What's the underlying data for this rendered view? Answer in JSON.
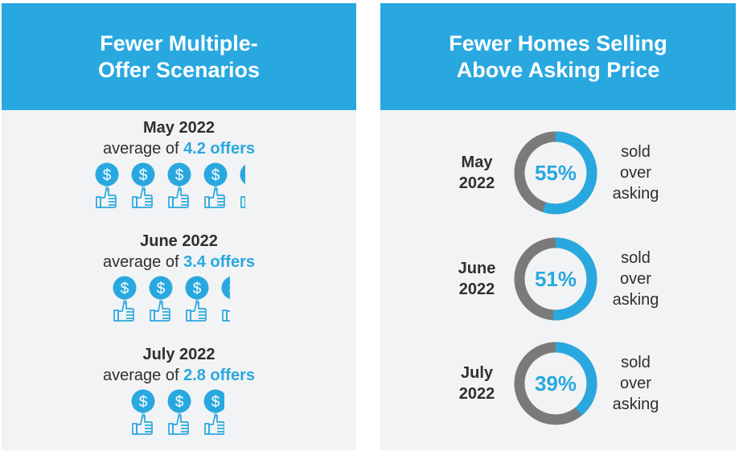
{
  "left_panel": {
    "title_lines": [
      "Fewer Multiple-",
      "Offer Scenarios"
    ],
    "periods": [
      {
        "label": "May 2022",
        "avg_prefix": "average of ",
        "avg_value": "4.2 offers",
        "offers": 4.2
      },
      {
        "label": "June 2022",
        "avg_prefix": "average of ",
        "avg_value": "3.4 offers",
        "offers": 3.4
      },
      {
        "label": "July 2022",
        "avg_prefix": "average of ",
        "avg_value": "2.8 offers",
        "offers": 2.8
      }
    ]
  },
  "right_panel": {
    "title_lines": [
      "Fewer Homes Selling",
      "Above Asking Price"
    ],
    "stats": [
      {
        "label_lines": [
          "May",
          "2022"
        ],
        "percent_label": "55%",
        "percent": 55,
        "caption_lines": [
          "sold",
          "over",
          "asking"
        ]
      },
      {
        "label_lines": [
          "June",
          "2022"
        ],
        "percent_label": "51%",
        "percent": 51,
        "caption_lines": [
          "sold",
          "over",
          "asking"
        ]
      },
      {
        "label_lines": [
          "July",
          "2022"
        ],
        "percent_label": "39%",
        "percent": 39,
        "caption_lines": [
          "sold",
          "over",
          "asking"
        ]
      }
    ]
  },
  "colors": {
    "accent": "#29a8e0",
    "ring_track": "#7a7a7a",
    "panel_bg": "#f2f3f4",
    "text": "#2f2f2f"
  },
  "icons": {
    "offer": "dollar-thumbs-up-icon"
  },
  "chart_data": [
    {
      "type": "pictogram",
      "title": "Fewer Multiple-Offer Scenarios",
      "categories": [
        "May 2022",
        "June 2022",
        "July 2022"
      ],
      "values": [
        4.2,
        3.4,
        2.8
      ],
      "unit": "offers"
    },
    {
      "type": "pie",
      "title": "Fewer Homes Selling Above Asking Price",
      "categories": [
        "May 2022",
        "June 2022",
        "July 2022"
      ],
      "values": [
        55,
        51,
        39
      ],
      "unit": "%"
    }
  ]
}
